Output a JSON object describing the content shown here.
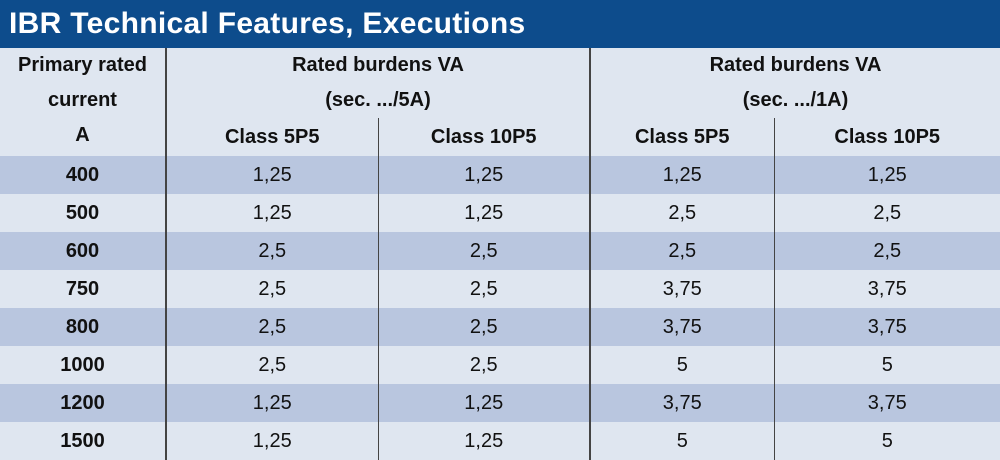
{
  "title": "IBR Technical Features, Executions",
  "header": {
    "primary_line1": "Primary rated",
    "primary_line2": "current",
    "primary_line3": "A",
    "group_5a_line1": "Rated burdens VA",
    "group_5a_line2": "(sec. .../5A)",
    "group_1a_line1": "Rated burdens VA",
    "group_1a_line2": "(sec. .../1A)",
    "classes": [
      "Class 5P5",
      "Class 10P5",
      "Class 5P5",
      "Class 10P5"
    ]
  },
  "rows": [
    {
      "current": "400",
      "a5_5p5": "1,25",
      "a5_10p5": "1,25",
      "a1_5p5": "1,25",
      "a1_10p5": "1,25"
    },
    {
      "current": "500",
      "a5_5p5": "1,25",
      "a5_10p5": "1,25",
      "a1_5p5": "2,5",
      "a1_10p5": "2,5"
    },
    {
      "current": "600",
      "a5_5p5": "2,5",
      "a5_10p5": "2,5",
      "a1_5p5": "2,5",
      "a1_10p5": "2,5"
    },
    {
      "current": "750",
      "a5_5p5": "2,5",
      "a5_10p5": "2,5",
      "a1_5p5": "3,75",
      "a1_10p5": "3,75"
    },
    {
      "current": "800",
      "a5_5p5": "2,5",
      "a5_10p5": "2,5",
      "a1_5p5": "3,75",
      "a1_10p5": "3,75"
    },
    {
      "current": "1000",
      "a5_5p5": "2,5",
      "a5_10p5": "2,5",
      "a1_5p5": "5",
      "a1_10p5": "5"
    },
    {
      "current": "1200",
      "a5_5p5": "1,25",
      "a5_10p5": "1,25",
      "a1_5p5": "3,75",
      "a1_10p5": "3,75"
    },
    {
      "current": "1500",
      "a5_5p5": "1,25",
      "a5_10p5": "1,25",
      "a1_5p5": "5",
      "a1_10p5": "5"
    }
  ],
  "colors": {
    "title_bar": "#0d4c8c",
    "row_dark": "#b9c6df",
    "row_light": "#dfe6f0"
  }
}
